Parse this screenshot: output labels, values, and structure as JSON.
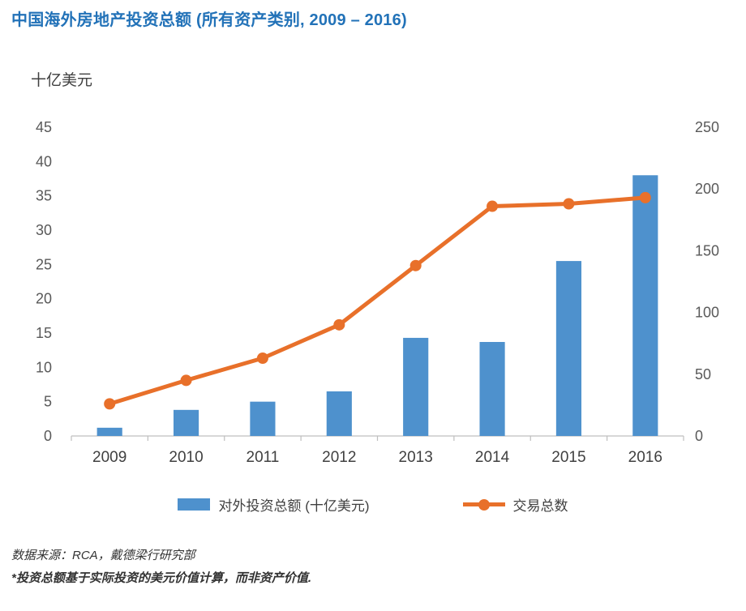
{
  "chart_data": {
    "type": "combo-bar-line",
    "title": "中国海外房地产投资总额 (所有资产类别, 2009 – 2016)",
    "unit_label": "十亿美元",
    "categories": [
      "2009",
      "2010",
      "2011",
      "2012",
      "2013",
      "2014",
      "2015",
      "2016"
    ],
    "series": [
      {
        "name": "对外投资总额 (十亿美元)",
        "type": "bar",
        "axis": "left",
        "color": "#4E91CD",
        "values": [
          1.2,
          3.8,
          5.0,
          6.5,
          14.3,
          13.7,
          25.5,
          38.0
        ]
      },
      {
        "name": "交易总数",
        "type": "line",
        "axis": "right",
        "color": "#E8702A",
        "values": [
          26,
          45,
          63,
          90,
          138,
          186,
          188,
          193
        ]
      }
    ],
    "axes": {
      "left": {
        "min": 0,
        "max": 45,
        "step": 5
      },
      "right": {
        "min": 0,
        "max": 250,
        "step": 50
      }
    },
    "grid": false,
    "legend_position": "bottom"
  },
  "footer": {
    "source": "数据来源：RCA，戴德梁行研究部",
    "disclaimer": "*投资总额基于实际投资的美元价值计算，而非资产价值."
  },
  "colors": {
    "title": "#2272B8",
    "axis_text": "#595959",
    "axis_line": "#BFBFBF"
  }
}
